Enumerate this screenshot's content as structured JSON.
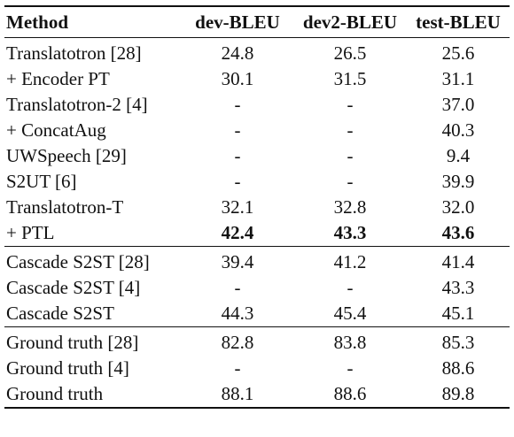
{
  "table": {
    "headers": [
      "Method",
      "dev-BLEU",
      "dev2-BLEU",
      "test-BLEU"
    ],
    "groups": [
      {
        "rows": [
          {
            "method": "Translatotron [28]",
            "dev": "24.8",
            "dev2": "26.5",
            "test": "25.6",
            "bold": false
          },
          {
            "method": "+ Encoder PT",
            "dev": "30.1",
            "dev2": "31.5",
            "test": "31.1",
            "bold": false
          },
          {
            "method": "Translatotron-2 [4]",
            "dev": "-",
            "dev2": "-",
            "test": "37.0",
            "bold": false
          },
          {
            "method": "+ ConcatAug",
            "dev": "-",
            "dev2": "-",
            "test": "40.3",
            "bold": false
          },
          {
            "method": "UWSpeech [29]",
            "dev": "-",
            "dev2": "-",
            "test": "9.4",
            "bold": false
          },
          {
            "method": "S2UT [6]",
            "dev": "-",
            "dev2": "-",
            "test": "39.9",
            "bold": false
          },
          {
            "method": "Translatotron-T",
            "dev": "32.1",
            "dev2": "32.8",
            "test": "32.0",
            "bold": false
          },
          {
            "method": "+ PTL",
            "dev": "42.4",
            "dev2": "43.3",
            "test": "43.6",
            "bold": true
          }
        ]
      },
      {
        "rows": [
          {
            "method": "Cascade S2ST [28]",
            "dev": "39.4",
            "dev2": "41.2",
            "test": "41.4",
            "bold": false
          },
          {
            "method": "Cascade S2ST [4]",
            "dev": "-",
            "dev2": "-",
            "test": "43.3",
            "bold": false
          },
          {
            "method": "Cascade S2ST",
            "dev": "44.3",
            "dev2": "45.4",
            "test": "45.1",
            "bold": false
          }
        ]
      },
      {
        "rows": [
          {
            "method": "Ground truth [28]",
            "dev": "82.8",
            "dev2": "83.8",
            "test": "85.3",
            "bold": false
          },
          {
            "method": "Ground truth [4]",
            "dev": "-",
            "dev2": "-",
            "test": "88.6",
            "bold": false
          },
          {
            "method": "Ground truth",
            "dev": "88.1",
            "dev2": "88.6",
            "test": "89.8",
            "bold": false
          }
        ]
      }
    ]
  }
}
